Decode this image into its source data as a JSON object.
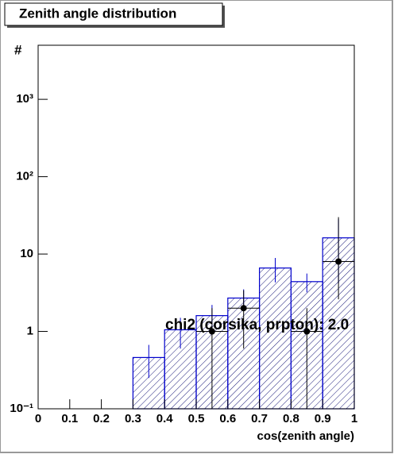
{
  "chart_data": {
    "type": "histogram",
    "title": "Zenith angle distribution",
    "xlabel": "cos(zenith angle)",
    "ylabel": "#",
    "annotation": "chi2 (corsika, prpton): 2.0",
    "bins": [
      0.3,
      0.4,
      0.5,
      0.6,
      0.7,
      0.8,
      0.9,
      1.0
    ],
    "values": [
      0.46,
      1.05,
      1.6,
      2.7,
      6.6,
      4.4,
      16.2
    ],
    "errors": [
      0.21,
      0.45,
      0.6,
      0.8,
      2.3,
      1.2,
      12
    ],
    "color": "#0000cc",
    "points": {
      "x": [
        0.55,
        0.65,
        0.85,
        0.95
      ],
      "xerr": [
        0.05,
        0.05,
        0.05,
        0.05
      ],
      "values": [
        1,
        2,
        1,
        8
      ],
      "err_low": [
        1,
        1.4,
        1,
        5.4
      ],
      "err_high": [
        1,
        1.4,
        1,
        22
      ],
      "color": "#000000"
    },
    "xlim": [
      0,
      1
    ],
    "xticks": [
      0,
      0.1,
      0.2,
      0.3,
      0.4,
      0.5,
      0.6,
      0.7,
      0.8,
      0.9,
      1
    ],
    "ylim": [
      0.1,
      5000
    ],
    "log_y": true,
    "yticks": [
      {
        "value": 0.1,
        "label": "10⁻¹"
      },
      1,
      10,
      {
        "value": 100,
        "label": "10²"
      },
      {
        "value": 1000,
        "label": "10³"
      }
    ]
  }
}
